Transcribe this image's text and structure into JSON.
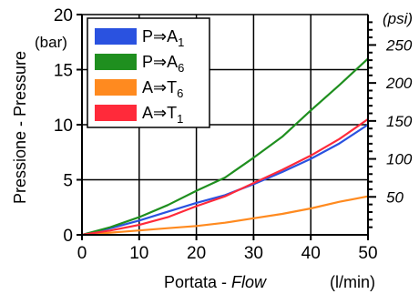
{
  "chart_data": {
    "type": "line",
    "x_title": "Portata - ",
    "x_title_italic": "Flow",
    "x_unit": "(l/min)",
    "y_title": "Pressione - Pressure",
    "y_unit": "(bar)",
    "y2_unit": "(psi)",
    "xlim": [
      0,
      50
    ],
    "ylim": [
      0,
      20
    ],
    "x_ticks": [
      0,
      10,
      20,
      30,
      40,
      50
    ],
    "y_ticks": [
      0,
      5,
      10,
      15,
      20
    ],
    "y2_ticks": [
      {
        "label": "50",
        "bar": 3.45
      },
      {
        "label": "100",
        "bar": 6.9
      },
      {
        "label": "150",
        "bar": 10.34
      },
      {
        "label": "200",
        "bar": 13.79
      },
      {
        "label": "250",
        "bar": 17.24
      }
    ],
    "grid": true,
    "legend_position": "top-left",
    "series": [
      {
        "name": "P⇒A",
        "sub": "1",
        "color": "#2a52e0",
        "x": [
          0,
          5,
          10,
          15,
          20,
          25,
          30,
          35,
          40,
          45,
          50
        ],
        "y": [
          0,
          0.6,
          1.3,
          2.1,
          2.9,
          3.6,
          4.6,
          5.7,
          6.9,
          8.3,
          10.0
        ]
      },
      {
        "name": "P⇒A",
        "sub": "6",
        "color": "#1f8f1f",
        "x": [
          0,
          5,
          10,
          15,
          20,
          25,
          30,
          35,
          40,
          45,
          50
        ],
        "y": [
          0,
          0.7,
          1.6,
          2.7,
          4.0,
          5.2,
          7.0,
          8.9,
          11.3,
          13.6,
          16.0
        ]
      },
      {
        "name": "A⇒T",
        "sub": "6",
        "color": "#ff8a1f",
        "x": [
          0,
          5,
          10,
          15,
          20,
          25,
          30,
          35,
          40,
          45,
          50
        ],
        "y": [
          0,
          0.2,
          0.4,
          0.6,
          0.8,
          1.1,
          1.5,
          1.9,
          2.4,
          3.0,
          3.5
        ]
      },
      {
        "name": "A⇒T",
        "sub": "1",
        "color": "#ff2a3a",
        "x": [
          0,
          5,
          10,
          15,
          20,
          25,
          30,
          35,
          40,
          45,
          50
        ],
        "y": [
          0,
          0.4,
          0.9,
          1.6,
          2.6,
          3.5,
          4.7,
          5.9,
          7.2,
          8.7,
          10.5
        ]
      }
    ]
  }
}
